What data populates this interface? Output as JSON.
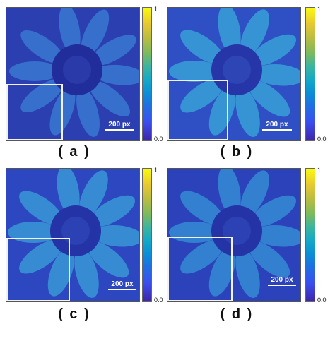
{
  "panels": [
    {
      "id": "a",
      "label": "( a )",
      "scale": "200 px",
      "cbar_max": "1",
      "cbar_min": "0.0"
    },
    {
      "id": "b",
      "label": "( b )",
      "scale": "200 px",
      "cbar_max": "1",
      "cbar_min": "0.0"
    },
    {
      "id": "c",
      "label": "( c )",
      "scale": "200 px",
      "cbar_max": "1",
      "cbar_min": "0.0"
    },
    {
      "id": "d",
      "label": "( d )",
      "scale": "200 px",
      "cbar_max": "1",
      "cbar_min": "0.0"
    }
  ],
  "colormap": "parula",
  "image_subject": "sunflower error map",
  "colors": {
    "background_blue": "#2b3fb0",
    "petal_cyan": "#2e8fd6",
    "center_dark": "#202a9a"
  }
}
